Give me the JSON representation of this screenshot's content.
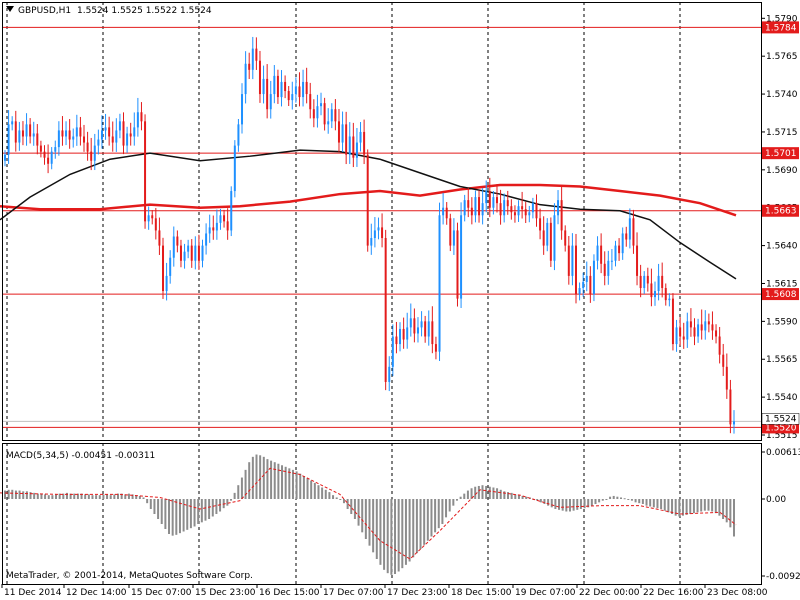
{
  "chart_data": {
    "type": "candlestick",
    "header": {
      "symbol": "GBPUSD,H1",
      "ohlc": "1.5524 1.5525 1.5522 1.5524"
    },
    "price_axis": {
      "ylim": [
        1.551,
        1.5798
      ],
      "ticks": [
        "1.5790",
        "1.5765",
        "1.5740",
        "1.5715",
        "1.5690",
        "1.5665",
        "1.5640",
        "1.5615",
        "1.5590",
        "1.5565",
        "1.5540",
        "1.5515"
      ]
    },
    "horizontal_lines": [
      {
        "label": "1.5784",
        "value": 1.5784
      },
      {
        "label": "1.5701",
        "value": 1.5701
      },
      {
        "label": "1.5663",
        "value": 1.5663
      },
      {
        "label": "1.5608",
        "value": 1.5608
      },
      {
        "label": "1.5520",
        "value": 1.552
      }
    ],
    "current_price": {
      "label": "1.5524",
      "value": 1.5524
    },
    "time_axis": {
      "labels": [
        "11 Dec 2014",
        "12 Dec 14:00",
        "15 Dec 07:00",
        "15 Dec 23:00",
        "16 Dec 15:00",
        "17 Dec 07:00",
        "17 Dec 23:00",
        "18 Dec 15:00",
        "19 Dec 07:00",
        "22 Dec 00:00",
        "22 Dec 16:00",
        "23 Dec 08:00"
      ]
    },
    "closes": [
      1.57,
      1.572,
      1.5722,
      1.5708,
      1.5716,
      1.5712,
      1.572,
      1.5712,
      1.5714,
      1.5706,
      1.5702,
      1.5698,
      1.5694,
      1.5702,
      1.5705,
      1.5716,
      1.5712,
      1.5716,
      1.571,
      1.5712,
      1.5718,
      1.5712,
      1.5708,
      1.5702,
      1.5696,
      1.5706,
      1.571,
      1.5716,
      1.5718,
      1.5712,
      1.5708,
      1.5716,
      1.5722,
      1.5706,
      1.5714,
      1.5712,
      1.5718,
      1.5728,
      1.5722,
      1.5656,
      1.566,
      1.5658,
      1.565,
      1.564,
      1.561,
      1.562,
      1.5632,
      1.5646,
      1.564,
      1.563,
      1.5636,
      1.564,
      1.563,
      1.564,
      1.563,
      1.564,
      1.5648,
      1.5652,
      1.565,
      1.5655,
      1.566,
      1.5656,
      1.565,
      1.5676,
      1.5706,
      1.572,
      1.574,
      1.576,
      1.5756,
      1.577,
      1.5762,
      1.574,
      1.575,
      1.573,
      1.574,
      1.5752,
      1.5738,
      1.5748,
      1.5742,
      1.5736,
      1.574,
      1.5745,
      1.5738,
      1.5748,
      1.574,
      1.573,
      1.5724,
      1.5732,
      1.5734,
      1.572,
      1.5722,
      1.573,
      1.5722,
      1.5708,
      1.572,
      1.57,
      1.5712,
      1.5698,
      1.5708,
      1.5715,
      1.57,
      1.564,
      1.5645,
      1.565,
      1.5652,
      1.5645,
      1.555,
      1.556,
      1.558,
      1.5575,
      1.5585,
      1.5578,
      1.5586,
      1.5592,
      1.5582,
      1.5586,
      1.559,
      1.558,
      1.559,
      1.5575,
      1.557,
      1.566,
      1.5665,
      1.5658,
      1.564,
      1.565,
      1.5605,
      1.566,
      1.567,
      1.5665,
      1.566,
      1.5672,
      1.566,
      1.5668,
      1.5676,
      1.5665,
      1.5672,
      1.5668,
      1.566,
      1.567,
      1.5666,
      1.5662,
      1.566,
      1.5666,
      1.5664,
      1.566,
      1.5662,
      1.5668,
      1.5658,
      1.565,
      1.564,
      1.5655,
      1.563,
      1.566,
      1.567,
      1.565,
      1.564,
      1.562,
      1.564,
      1.5608,
      1.5612,
      1.5616,
      1.562,
      1.5608,
      1.563,
      1.564,
      1.5628,
      1.562,
      1.563,
      1.563,
      1.564,
      1.5635,
      1.5648,
      1.5644,
      1.5658,
      1.564,
      1.562,
      1.5612,
      1.562,
      1.5615,
      1.5606,
      1.561,
      1.562,
      1.5612,
      1.5604,
      1.5605,
      1.5575,
      1.5586,
      1.558,
      1.5578,
      1.559,
      1.5586,
      1.558,
      1.5588,
      1.5584,
      1.559,
      1.5588,
      1.5584,
      1.558,
      1.5568,
      1.556,
      1.5545,
      1.5522,
      1.5524
    ],
    "ma_black": [
      [
        0,
        1.5657
      ],
      [
        30,
        1.5672
      ],
      [
        70,
        1.5687
      ],
      [
        110,
        1.5697
      ],
      [
        150,
        1.5701
      ],
      [
        200,
        1.5696
      ],
      [
        250,
        1.5699
      ],
      [
        300,
        1.5703
      ],
      [
        340,
        1.5702
      ],
      [
        380,
        1.5697
      ],
      [
        420,
        1.5688
      ],
      [
        460,
        1.5679
      ],
      [
        500,
        1.5674
      ],
      [
        540,
        1.5667
      ],
      [
        580,
        1.5664
      ],
      [
        620,
        1.5663
      ],
      [
        650,
        1.5657
      ],
      [
        680,
        1.5642
      ],
      [
        710,
        1.5629
      ],
      [
        736,
        1.5618
      ]
    ],
    "ma_red": [
      [
        0,
        1.5666
      ],
      [
        40,
        1.5664
      ],
      [
        100,
        1.5664
      ],
      [
        150,
        1.5667
      ],
      [
        200,
        1.5665
      ],
      [
        240,
        1.5666
      ],
      [
        290,
        1.5669
      ],
      [
        340,
        1.5674
      ],
      [
        380,
        1.5676
      ],
      [
        420,
        1.5673
      ],
      [
        460,
        1.5677
      ],
      [
        500,
        1.568
      ],
      [
        540,
        1.568
      ],
      [
        580,
        1.5679
      ],
      [
        620,
        1.5676
      ],
      [
        660,
        1.5673
      ],
      [
        700,
        1.5668
      ],
      [
        736,
        1.566
      ]
    ],
    "macd": {
      "label": "MACD(5,34,5) -0.00451 -0.00311",
      "ylim": [
        -0.00924,
        0.00613
      ],
      "ticks": [
        "0.00613",
        "0.00",
        "-0.00924"
      ],
      "histogram": [
        0.0011,
        0.0012,
        0.0012,
        0.0011,
        0.0011,
        0.001,
        0.001,
        0.0009,
        0.0008,
        0.0007,
        0.0007,
        0.0006,
        0.0005,
        0.0005,
        0.0006,
        0.0007,
        0.0007,
        0.0008,
        0.0007,
        0.0007,
        0.0007,
        0.0007,
        0.0006,
        0.0006,
        0.0005,
        0.0005,
        0.0005,
        0.0006,
        0.0006,
        0.0005,
        0.0006,
        0.0007,
        0.0007,
        0.0006,
        0.0007,
        0.0006,
        0.0005,
        0.0004,
        0.0002,
        -0.0005,
        -0.0012,
        -0.0018,
        -0.0024,
        -0.003,
        -0.0036,
        -0.0042,
        -0.0044,
        -0.0043,
        -0.0041,
        -0.0039,
        -0.0037,
        -0.0035,
        -0.0033,
        -0.003,
        -0.0028,
        -0.0026,
        -0.0024,
        -0.0021,
        -0.0018,
        -0.0015,
        -0.0011,
        -0.0008,
        -0.0002,
        0.0008,
        0.0018,
        0.0028,
        0.0038,
        0.0048,
        0.0055,
        0.0058,
        0.0057,
        0.0055,
        0.0052,
        0.005,
        0.0048,
        0.0046,
        0.0044,
        0.0042,
        0.004,
        0.0038,
        0.0036,
        0.0033,
        0.003,
        0.0027,
        0.0024,
        0.0021,
        0.0018,
        0.0015,
        0.0012,
        0.0009,
        0.0005,
        0.0002,
        0.0,
        -0.0005,
        -0.0012,
        -0.0018,
        -0.0024,
        -0.0032,
        -0.004,
        -0.0048,
        -0.0056,
        -0.0064,
        -0.0072,
        -0.0079,
        -0.0085,
        -0.0089,
        -0.0091,
        -0.009,
        -0.0087,
        -0.0083,
        -0.0079,
        -0.0075,
        -0.007,
        -0.0065,
        -0.006,
        -0.0055,
        -0.005,
        -0.0045,
        -0.004,
        -0.0035,
        -0.003,
        -0.0022,
        -0.0015,
        -0.0008,
        -0.0002,
        0.0003,
        0.0007,
        0.0011,
        0.0014,
        0.0016,
        0.0017,
        0.0018,
        0.0017,
        0.0016,
        0.0015,
        0.0014,
        0.0012,
        0.001,
        0.0009,
        0.0008,
        0.0006,
        0.0005,
        0.0004,
        0.0003,
        0.0002,
        0.0,
        -0.0002,
        -0.0004,
        -0.0006,
        -0.0008,
        -0.001,
        -0.0012,
        -0.0013,
        -0.0014,
        -0.0015,
        -0.0015,
        -0.0014,
        -0.0013,
        -0.0012,
        -0.0011,
        -0.001,
        -0.0008,
        -0.0006,
        -0.0004,
        -0.0002,
        0.0,
        0.0003,
        0.0004,
        0.0003,
        0.0002,
        0.0001,
        -0.0001,
        -0.0002,
        -0.0004,
        -0.0005,
        -0.0006,
        -0.0008,
        -0.0009,
        -0.001,
        -0.0011,
        -0.0012,
        -0.0014,
        -0.0016,
        -0.0018,
        -0.002,
        -0.0021,
        -0.002,
        -0.0019,
        -0.0018,
        -0.0017,
        -0.0016,
        -0.0015,
        -0.0014,
        -0.0014,
        -0.0015,
        -0.0017,
        -0.002,
        -0.0024,
        -0.0028,
        -0.0034,
        -0.0045
      ],
      "signal": [
        [
          0,
          0.0008
        ],
        [
          60,
          0.0006
        ],
        [
          120,
          0.0006
        ],
        [
          160,
          0.0002
        ],
        [
          200,
          -0.0012
        ],
        [
          240,
          -0.0002
        ],
        [
          270,
          0.004
        ],
        [
          300,
          0.0032
        ],
        [
          340,
          0.0006
        ],
        [
          380,
          -0.005
        ],
        [
          410,
          -0.0072
        ],
        [
          440,
          -0.0038
        ],
        [
          480,
          0.0012
        ],
        [
          520,
          0.0005
        ],
        [
          560,
          -0.001
        ],
        [
          600,
          -0.0008
        ],
        [
          640,
          -0.0008
        ],
        [
          680,
          -0.0018
        ],
        [
          720,
          -0.0016
        ],
        [
          736,
          -0.0031
        ]
      ]
    },
    "copyright": "MetaTrader, © 2001-2014, MetaQuotes Software Corp.",
    "colors": {
      "bull": "#1e90ff",
      "bear": "#e31b1b",
      "ma_black": "#111111",
      "ma_red": "#e31b1b",
      "hist": "#8c8c8c",
      "signal": "#e31b1b",
      "level": "#e31b1b",
      "grid": "#000000"
    }
  }
}
